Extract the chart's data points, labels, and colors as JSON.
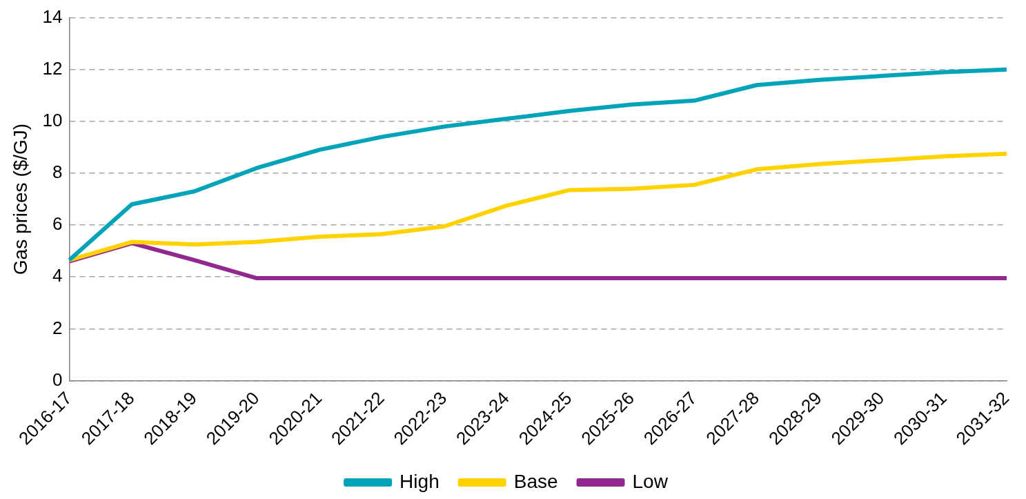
{
  "chart_data": {
    "type": "line",
    "ylabel": "Gas prices ($/GJ)",
    "categories": [
      "2016-17",
      "2017-18",
      "2018-19",
      "2019-20",
      "2020-21",
      "2021-22",
      "2022-23",
      "2023-24",
      "2024-25",
      "2025-26",
      "2026-27",
      "2027-28",
      "2028-29",
      "2029-30",
      "2030-31",
      "2031-32"
    ],
    "series": [
      {
        "name": "High",
        "color": "#00a3b8",
        "values": [
          4.65,
          6.8,
          7.3,
          8.2,
          8.9,
          9.4,
          9.8,
          10.1,
          10.4,
          10.65,
          10.8,
          11.4,
          11.6,
          11.75,
          11.9,
          12.0
        ]
      },
      {
        "name": "Base",
        "color": "#ffd200",
        "values": [
          4.65,
          5.35,
          5.25,
          5.35,
          5.55,
          5.65,
          5.95,
          6.75,
          7.35,
          7.4,
          7.55,
          8.15,
          8.35,
          8.5,
          8.65,
          8.75
        ]
      },
      {
        "name": "Low",
        "color": "#92278f",
        "values": [
          4.6,
          5.3,
          4.65,
          3.95,
          3.95,
          3.95,
          3.95,
          3.95,
          3.95,
          3.95,
          3.95,
          3.95,
          3.95,
          3.95,
          3.95,
          3.95
        ]
      }
    ],
    "ylim": [
      0,
      14
    ],
    "yticks": [
      0,
      2,
      4,
      6,
      8,
      10,
      12,
      14
    ],
    "grid": "y",
    "legend": "bottom",
    "marker": "none",
    "line_style": "solid"
  }
}
